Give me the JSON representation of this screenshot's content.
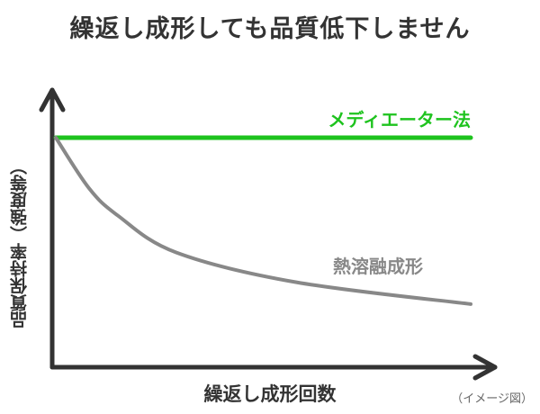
{
  "chart_data": {
    "type": "line",
    "title": "繰返し成形しても品質低下しません",
    "xlabel": "繰返し成形回数",
    "ylabel": "品質保持率（強度等）",
    "note": "（イメージ図）",
    "grid": false,
    "ticks": false,
    "xlim": [
      0,
      100
    ],
    "ylim": [
      0,
      100
    ],
    "series": [
      {
        "name": "メディエーター法",
        "color": "#1ec31e",
        "x": [
          0,
          100
        ],
        "y": [
          100,
          100
        ]
      },
      {
        "name": "熱溶融成形",
        "color": "#888888",
        "x": [
          0,
          8,
          15,
          29,
          58,
          100
        ],
        "y": [
          100,
          78,
          66,
          50,
          37,
          27.5
        ]
      }
    ],
    "axis_color": "#333333"
  }
}
